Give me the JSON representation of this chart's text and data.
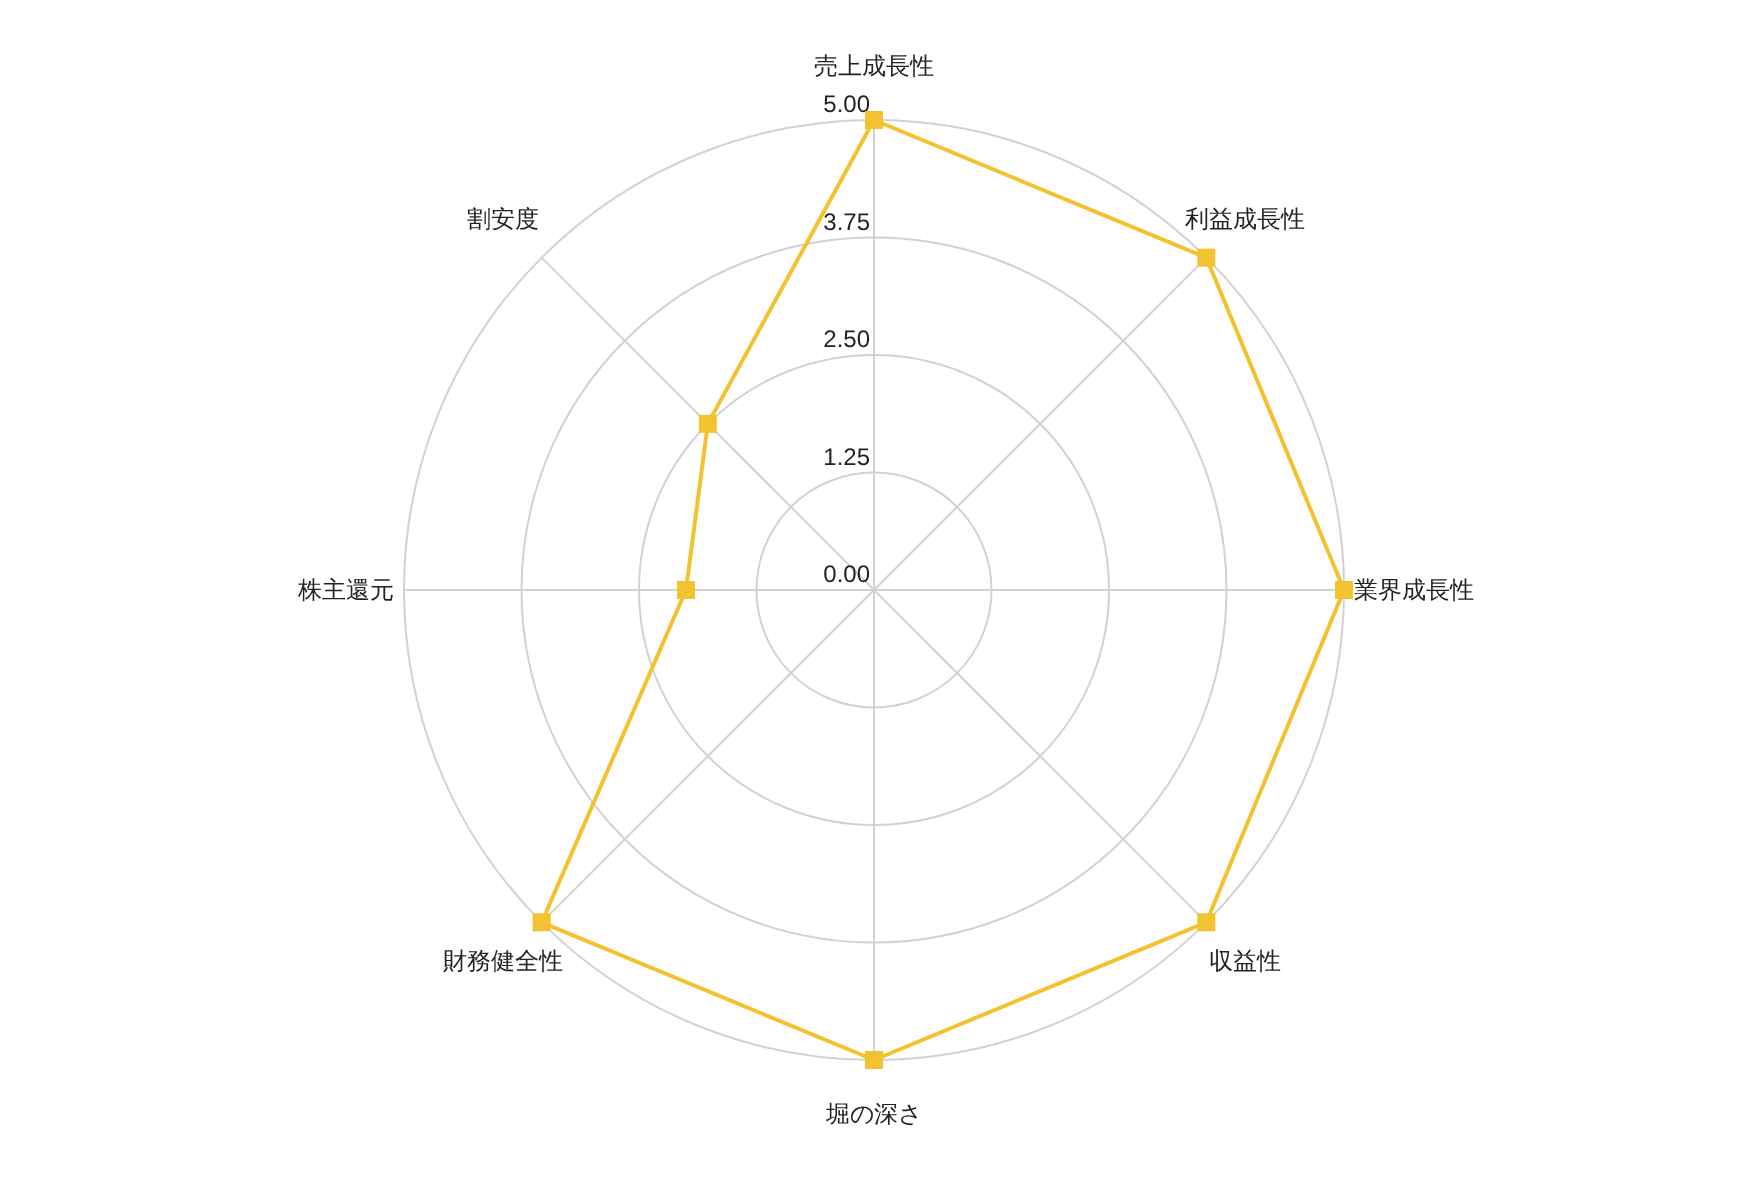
{
  "chart_data": {
    "type": "radar",
    "categories": [
      "売上成長性",
      "利益成長性",
      "業界成長性",
      "収益性",
      "堀の深さ",
      "財務健全性",
      "株主還元",
      "割安度"
    ],
    "series": [
      {
        "color": "#f2c231",
        "values": [
          5,
          5,
          5,
          5,
          5,
          5,
          2,
          2.5
        ]
      }
    ],
    "ylim": [
      0,
      5
    ],
    "yticks": [
      {
        "value": 0,
        "label": "0.00"
      },
      {
        "value": 1.25,
        "label": "1.25"
      },
      {
        "value": 2.5,
        "label": "2.50"
      },
      {
        "value": 3.75,
        "label": "3.75"
      },
      {
        "value": 5,
        "label": "5.00"
      }
    ],
    "grid": true,
    "marker": "square"
  }
}
